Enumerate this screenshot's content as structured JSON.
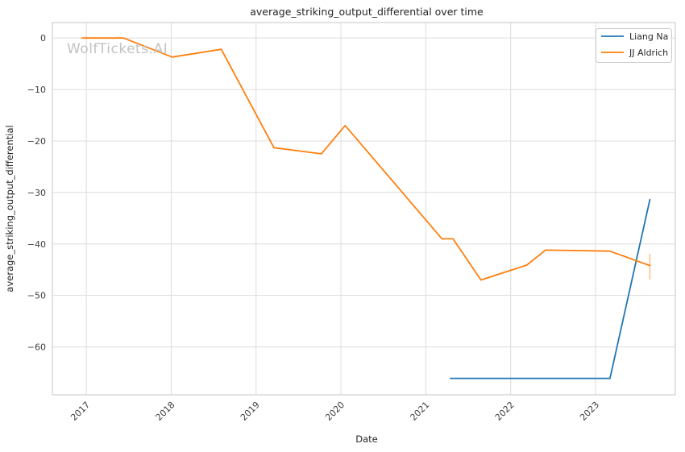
{
  "watermark": {
    "text": "WolfTickets.AI",
    "color": "#c2c2c2"
  },
  "chart_data": {
    "type": "line",
    "title": "average_striking_output_differential over time",
    "xlabel": "Date",
    "ylabel": "average_striking_output_differential",
    "grid": true,
    "legend": {
      "position": "upper right",
      "entries": [
        "Liang Na",
        "JJ Aldrich"
      ]
    },
    "xlim": [
      2016.6,
      2023.94
    ],
    "ylim": [
      -69.3,
      3.0
    ],
    "x_ticks": [
      {
        "value": 2017,
        "label": "2017"
      },
      {
        "value": 2018,
        "label": "2018"
      },
      {
        "value": 2019,
        "label": "2019"
      },
      {
        "value": 2020,
        "label": "2020"
      },
      {
        "value": 2021,
        "label": "2021"
      },
      {
        "value": 2022,
        "label": "2022"
      },
      {
        "value": 2023,
        "label": "2023"
      }
    ],
    "y_ticks": [
      {
        "value": 0,
        "label": "0"
      },
      {
        "value": -10,
        "label": "−10"
      },
      {
        "value": -20,
        "label": "−20"
      },
      {
        "value": -30,
        "label": "−30"
      },
      {
        "value": -40,
        "label": "−40"
      },
      {
        "value": -50,
        "label": "−50"
      },
      {
        "value": -60,
        "label": "−60"
      }
    ],
    "series": [
      {
        "name": "Liang Na",
        "color": "#1f77b4",
        "x": [
          2021.29,
          2023.17,
          2023.64
        ],
        "y": [
          -66.1,
          -66.1,
          -31.4
        ]
      },
      {
        "name": "JJ Aldrich",
        "color": "#ff7f0e",
        "x": [
          2016.95,
          2017.44,
          2018.01,
          2018.59,
          2019.21,
          2019.77,
          2020.05,
          2021.19,
          2021.32,
          2021.65,
          2022.19,
          2022.41,
          2023.17,
          2023.64
        ],
        "y": [
          0.0,
          0.0,
          -3.7,
          -2.2,
          -21.3,
          -22.5,
          -17.0,
          -39.0,
          -39.0,
          -47.0,
          -44.1,
          -41.2,
          -41.4,
          -44.2
        ],
        "error_bar": {
          "x": 2023.64,
          "y_from": -46.9,
          "y_to": -41.9,
          "color": "rgba(255,127,14,0.5)"
        }
      }
    ],
    "colors": {
      "grid": "#dcdcdc",
      "spine": "#cfcfcf",
      "title_text": "#262626",
      "tick_text": "#3d3d3d"
    }
  }
}
